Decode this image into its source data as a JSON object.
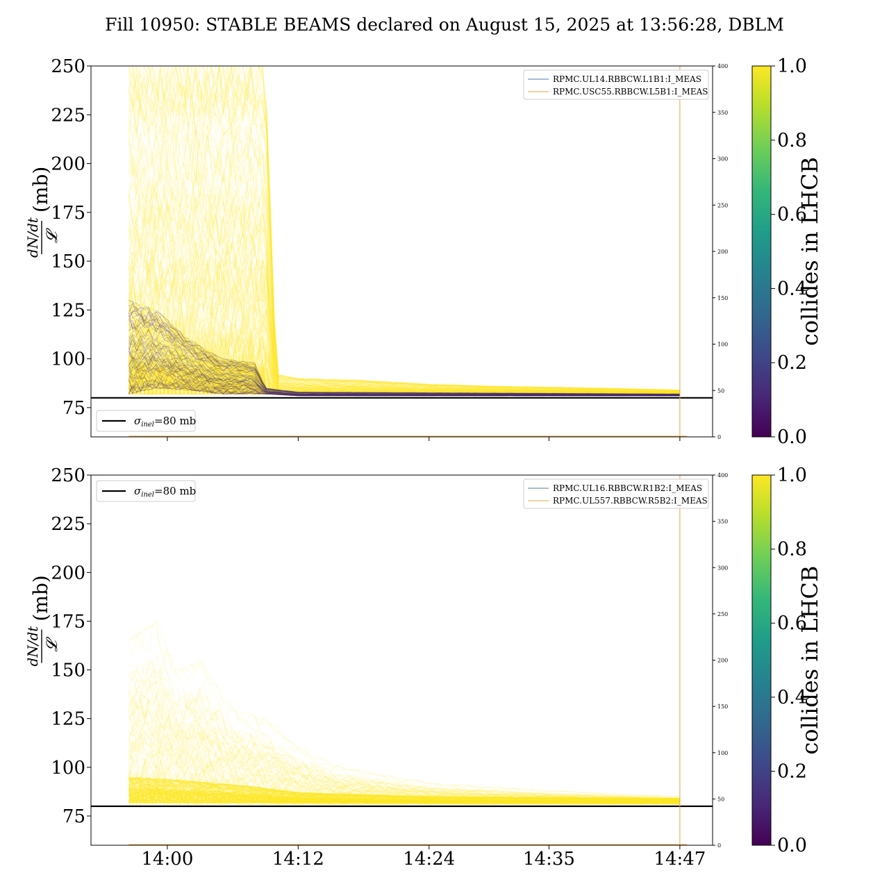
{
  "figure": {
    "title": "Fill 10950: STABLE BEAMS declared on August 15, 2025 at 13:56:28, DBLM"
  },
  "colors": {
    "viridis": [
      "#440154",
      "#482878",
      "#3e4989",
      "#31688e",
      "#26828e",
      "#1f9e89",
      "#35b779",
      "#6ece58",
      "#b5de2b",
      "#fde725"
    ],
    "current_line_1": "#4c78a8",
    "current_line_2": "#e8a33c",
    "reference_line": "#000000"
  },
  "chart_data": [
    {
      "type": "line",
      "panel": "top",
      "ylabel_math": "dN/dt / 𝓛",
      "ylabel_unit": "(mb)",
      "ylim": [
        60,
        250
      ],
      "yticks": [
        75,
        100,
        125,
        150,
        175,
        200,
        225,
        250
      ],
      "x_range_minutes": [
        "13:53",
        "14:50"
      ],
      "xticks": [
        "14:00",
        "14:12",
        "14:24",
        "14:35",
        "14:47"
      ],
      "xtick_labels_shown": false,
      "secondary_y": {
        "ylim": [
          0,
          400
        ],
        "ticks": [
          0,
          50,
          100,
          150,
          200,
          250,
          300,
          350,
          400
        ]
      },
      "legend_currents": [
        "RPMC.UL14.RBBCW.L1B1:I_MEAS",
        "RPMC.USC55.RBBCW.L5B1:I_MEAS"
      ],
      "legend_currents_position": "upper right",
      "reference": {
        "label_sym": "σ",
        "label_sub": "inel",
        "label_rest": "=80 mb",
        "value": 80,
        "legend_position": "lower left"
      },
      "vertical_marker_time": "14:47",
      "series_summary": {
        "start": "13:56:28",
        "end": "14:47",
        "yellow_envelope_min_max": [
          [
            "13:56:28",
            82,
            250
          ],
          [
            "14:02",
            82,
            250
          ],
          [
            "14:06",
            82,
            250
          ],
          [
            "14:09",
            82,
            250
          ],
          [
            "14:10",
            82,
            92
          ],
          [
            "14:12",
            82,
            90
          ],
          [
            "14:18",
            82,
            89
          ],
          [
            "14:24",
            82,
            87
          ],
          [
            "14:30",
            82,
            86
          ],
          [
            "14:40",
            82,
            85
          ],
          [
            "14:47",
            82,
            84
          ]
        ],
        "purple_band_min_max": [
          [
            "13:56:28",
            82,
            130
          ],
          [
            "13:59",
            85,
            125
          ],
          [
            "14:02",
            84,
            110
          ],
          [
            "14:05",
            82,
            100
          ],
          [
            "14:08",
            82,
            98
          ],
          [
            "14:09",
            82,
            85
          ],
          [
            "14:12",
            81,
            83
          ],
          [
            "14:47",
            81,
            82
          ]
        ]
      },
      "colorbar": {
        "label": "collides in LHCB",
        "range": [
          0.0,
          1.0
        ],
        "ticks": [
          "0.0",
          "0.2",
          "0.4",
          "0.6",
          "0.8",
          "1.0"
        ]
      }
    },
    {
      "type": "line",
      "panel": "bottom",
      "ylabel_math": "dN/dt / 𝓛",
      "ylabel_unit": "(mb)",
      "ylim": [
        60,
        250
      ],
      "yticks": [
        75,
        100,
        125,
        150,
        175,
        200,
        225,
        250
      ],
      "x_range_minutes": [
        "13:53",
        "14:50"
      ],
      "xticks": [
        "14:00",
        "14:12",
        "14:24",
        "14:35",
        "14:47"
      ],
      "xtick_labels_shown": true,
      "secondary_y": {
        "ylim": [
          0,
          400
        ],
        "ticks": [
          0,
          50,
          100,
          150,
          200,
          250,
          300,
          350,
          400
        ]
      },
      "legend_currents": [
        "RPMC.UL16.RBBCW.R1B2:I_MEAS",
        "RPMC.UL557.RBBCW.R5B2:I_MEAS"
      ],
      "legend_currents_position": "upper right",
      "reference": {
        "label_sym": "σ",
        "label_sub": "inel",
        "label_rest": "=80 mb",
        "value": 80,
        "legend_position": "upper left"
      },
      "vertical_marker_time": "14:47",
      "series_summary": {
        "start": "13:56:28",
        "end": "14:47",
        "yellow_envelope_min_max": [
          [
            "13:56:28",
            82,
            165
          ],
          [
            "13:59",
            82,
            175
          ],
          [
            "14:01",
            82,
            150
          ],
          [
            "14:03",
            82,
            155
          ],
          [
            "14:06",
            82,
            130
          ],
          [
            "14:09",
            82,
            125
          ],
          [
            "14:12",
            82,
            110
          ],
          [
            "14:16",
            82,
            100
          ],
          [
            "14:24",
            82,
            92
          ],
          [
            "14:35",
            82,
            88
          ],
          [
            "14:47",
            82,
            85
          ]
        ],
        "dense_band_min_max": [
          [
            "13:56:28",
            81,
            95
          ],
          [
            "14:02",
            81,
            93
          ],
          [
            "14:08",
            81,
            90
          ],
          [
            "14:12",
            81,
            87
          ],
          [
            "14:24",
            81,
            85
          ],
          [
            "14:47",
            81,
            84
          ]
        ]
      },
      "colorbar": {
        "label": "collides in LHCB",
        "range": [
          0.0,
          1.0
        ],
        "ticks": [
          "0.0",
          "0.2",
          "0.4",
          "0.6",
          "0.8",
          "1.0"
        ]
      }
    }
  ]
}
